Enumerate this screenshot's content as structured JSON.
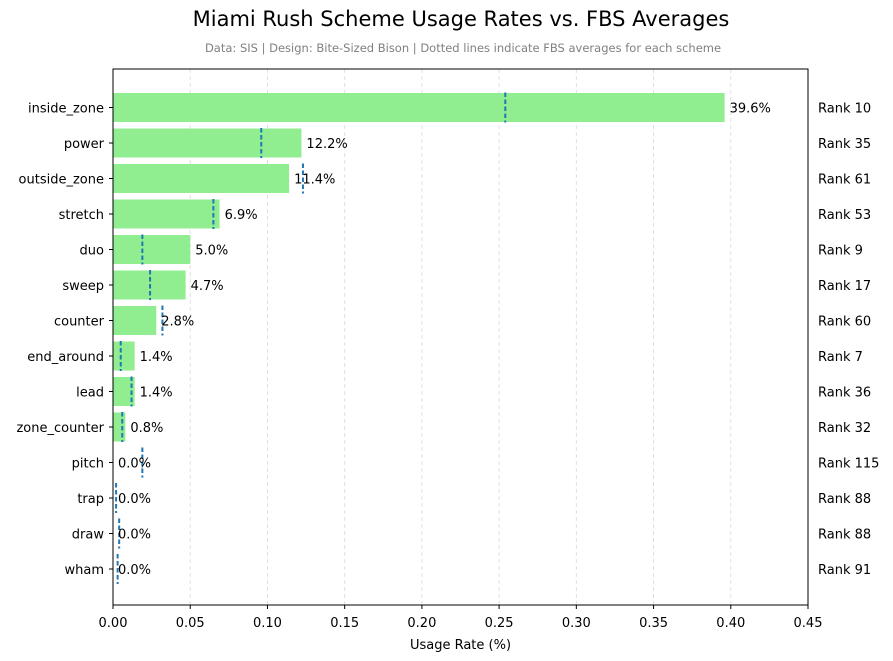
{
  "chart_data": {
    "type": "bar",
    "orientation": "horizontal",
    "title": "Miami Rush Scheme Usage Rates vs. FBS Averages",
    "subtitle": "Data: SIS | Design: Bite-Sized Bison | Dotted lines indicate FBS averages for each scheme",
    "xlabel": "Usage Rate (%)",
    "ylabel": "",
    "xlim": [
      0,
      0.45
    ],
    "xticks": [
      0.0,
      0.05,
      0.1,
      0.15,
      0.2,
      0.25,
      0.3,
      0.35,
      0.4,
      0.45
    ],
    "xtick_labels": [
      "0.00",
      "0.05",
      "0.10",
      "0.15",
      "0.20",
      "0.25",
      "0.30",
      "0.35",
      "0.40",
      "0.45"
    ],
    "grid": "x-axis dashed",
    "bar_color": "#90ee90",
    "avg_line_color": "#1f77b4",
    "categories": [
      "inside_zone",
      "power",
      "outside_zone",
      "stretch",
      "duo",
      "sweep",
      "counter",
      "end_around",
      "lead",
      "zone_counter",
      "pitch",
      "trap",
      "draw",
      "wham"
    ],
    "series": [
      {
        "name": "Miami usage rate",
        "values": [
          0.396,
          0.122,
          0.114,
          0.069,
          0.05,
          0.047,
          0.028,
          0.014,
          0.014,
          0.008,
          0.0,
          0.0,
          0.0,
          0.0
        ]
      },
      {
        "name": "FBS average",
        "values": [
          0.254,
          0.096,
          0.123,
          0.065,
          0.019,
          0.024,
          0.032,
          0.005,
          0.012,
          0.006,
          0.019,
          0.002,
          0.004,
          0.003
        ]
      }
    ],
    "value_labels": [
      "39.6%",
      "12.2%",
      "11.4%",
      "6.9%",
      "5.0%",
      "4.7%",
      "2.8%",
      "1.4%",
      "1.4%",
      "0.8%",
      "0.0%",
      "0.0%",
      "0.0%",
      "0.0%"
    ],
    "rank_labels": [
      "Rank 10",
      "Rank 35",
      "Rank 61",
      "Rank 53",
      "Rank 9",
      "Rank 17",
      "Rank 60",
      "Rank 7",
      "Rank 36",
      "Rank 32",
      "Rank 115",
      "Rank 88",
      "Rank 88",
      "Rank 91"
    ]
  }
}
